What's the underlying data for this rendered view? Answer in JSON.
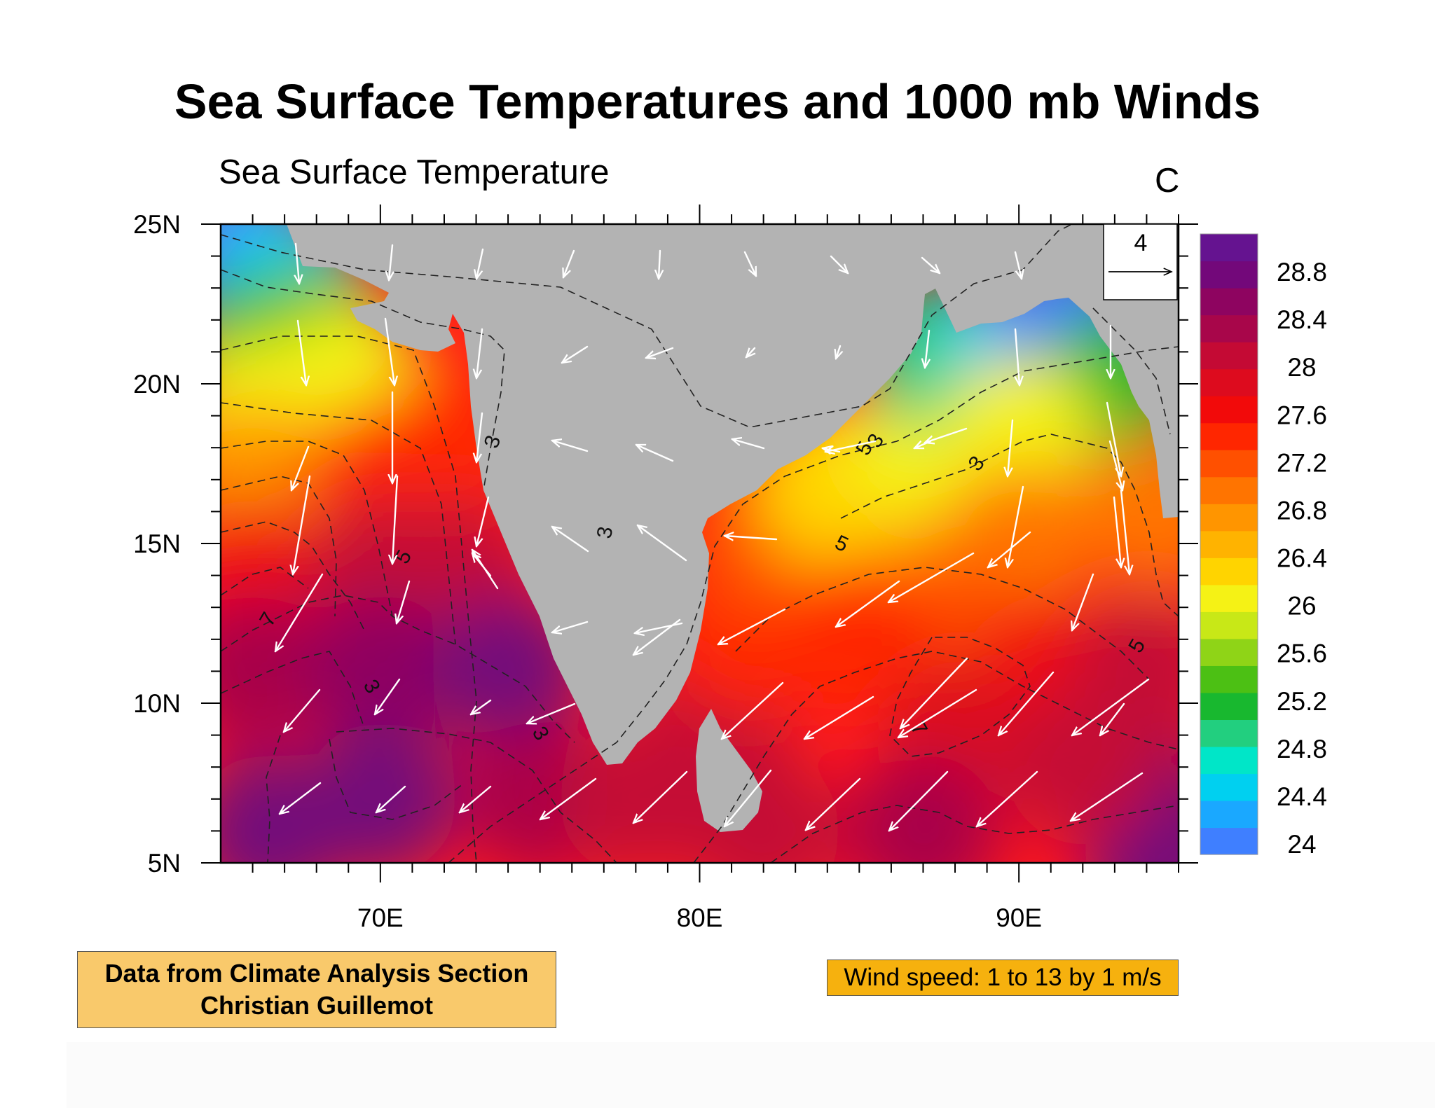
{
  "title": "Sea Surface Temperatures and 1000 mb Winds",
  "subtitle_left": "Sea Surface Temperature",
  "subtitle_right": "C",
  "credit": {
    "line1": "Data from Climate Analysis Section",
    "line2": "Christian Guillemot"
  },
  "wind_label": "Wind speed: 1 to 13 by 1 m/s",
  "reference_vector": {
    "label": "4",
    "magnitude": 4
  },
  "colors": {
    "land": "#b3b3b3",
    "background": "#ffffff",
    "credit_box": "#f9c96b",
    "wind_box": "#f6b10e",
    "wind_vectors": "#ffffff",
    "contours": "#222222"
  },
  "chart_data": {
    "type": "heatmap",
    "title": "Sea Surface Temperatures and 1000 mb Winds",
    "subtitle": "Sea Surface Temperature",
    "units": "C",
    "x_ticks": [
      "70E",
      "80E",
      "90E"
    ],
    "y_ticks": [
      "25N",
      "20N",
      "15N",
      "10N",
      "5N"
    ],
    "x_range": [
      65,
      95
    ],
    "y_range": [
      5,
      25
    ],
    "colorbar": {
      "labels": [
        "28.8",
        "28.4",
        "28",
        "27.6",
        "27.2",
        "26.8",
        "26.4",
        "26",
        "25.6",
        "25.2",
        "24.8",
        "24.4",
        "24"
      ],
      "min": 24,
      "max": 29,
      "colors": [
        "#3f7fff",
        "#1aa8ff",
        "#00d0f0",
        "#00e6c8",
        "#22cf7f",
        "#18b82f",
        "#4cc014",
        "#8fd417",
        "#c8e817",
        "#f5f215",
        "#ffd400",
        "#ffb300",
        "#ff9500",
        "#ff7400",
        "#ff5000",
        "#ff2600",
        "#f20a0a",
        "#dd0b1e",
        "#c40a34",
        "#a8064a",
        "#8e0460",
        "#73087a",
        "#651390"
      ]
    },
    "contour_labels": [
      "3",
      "3",
      "3",
      "3",
      "3",
      "3",
      "5",
      "5",
      "5",
      "5",
      "7",
      "7"
    ],
    "wind_speed_range_m_s": [
      1,
      13
    ],
    "wind_speed_interval_m_s": 1,
    "temperature_field": [
      {
        "lon": 65.5,
        "lat": 24.5,
        "sst": 24.1
      },
      {
        "lon": 67,
        "lat": 23,
        "sst": 24.5
      },
      {
        "lon": 66,
        "lat": 21,
        "sst": 25.2
      },
      {
        "lon": 68,
        "lat": 21.5,
        "sst": 25.3
      },
      {
        "lon": 66,
        "lat": 19,
        "sst": 26.0
      },
      {
        "lon": 69,
        "lat": 20,
        "sst": 26.1
      },
      {
        "lon": 66,
        "lat": 17,
        "sst": 26.8
      },
      {
        "lon": 70,
        "lat": 17,
        "sst": 27.3
      },
      {
        "lon": 72,
        "lat": 18,
        "sst": 27.4
      },
      {
        "lon": 66,
        "lat": 14,
        "sst": 27.6
      },
      {
        "lon": 70,
        "lat": 14,
        "sst": 28.0
      },
      {
        "lon": 72.5,
        "lat": 14,
        "sst": 28.2
      },
      {
        "lon": 66,
        "lat": 11,
        "sst": 28.3
      },
      {
        "lon": 70,
        "lat": 11,
        "sst": 28.6
      },
      {
        "lon": 74,
        "lat": 11,
        "sst": 28.7
      },
      {
        "lon": 66.5,
        "lat": 6,
        "sst": 28.8
      },
      {
        "lon": 70,
        "lat": 7,
        "sst": 28.7
      },
      {
        "lon": 75,
        "lat": 7,
        "sst": 28.4
      },
      {
        "lon": 78,
        "lat": 7,
        "sst": 28.2
      },
      {
        "lon": 82,
        "lat": 6,
        "sst": 28.2
      },
      {
        "lon": 80.5,
        "lat": 9.5,
        "sst": 28.0
      },
      {
        "lon": 81.5,
        "lat": 12,
        "sst": 27.5
      },
      {
        "lon": 82,
        "lat": 15,
        "sst": 27.1
      },
      {
        "lon": 85,
        "lat": 15,
        "sst": 26.8
      },
      {
        "lon": 84,
        "lat": 17,
        "sst": 26.3
      },
      {
        "lon": 87,
        "lat": 18,
        "sst": 26.0
      },
      {
        "lon": 87.5,
        "lat": 21,
        "sst": 24.8
      },
      {
        "lon": 90,
        "lat": 21,
        "sst": 24.4
      },
      {
        "lon": 91.5,
        "lat": 22,
        "sst": 24.0
      },
      {
        "lon": 93,
        "lat": 20,
        "sst": 25.2
      },
      {
        "lon": 90,
        "lat": 18.5,
        "sst": 26.1
      },
      {
        "lon": 94.5,
        "lat": 16,
        "sst": 27.0
      },
      {
        "lon": 90,
        "lat": 15,
        "sst": 26.9
      },
      {
        "lon": 88,
        "lat": 12,
        "sst": 27.2
      },
      {
        "lon": 85,
        "lat": 12,
        "sst": 27.3
      },
      {
        "lon": 91,
        "lat": 11,
        "sst": 27.6
      },
      {
        "lon": 94,
        "lat": 11,
        "sst": 28.0
      },
      {
        "lon": 88,
        "lat": 9,
        "sst": 27.8
      },
      {
        "lon": 87,
        "lat": 6,
        "sst": 28.3
      },
      {
        "lon": 94.5,
        "lat": 6.5,
        "sst": 28.6
      },
      {
        "lon": 94.5,
        "lat": 5.2,
        "sst": 28.8
      },
      {
        "lon": 92,
        "lat": 8,
        "sst": 28.2
      }
    ]
  }
}
